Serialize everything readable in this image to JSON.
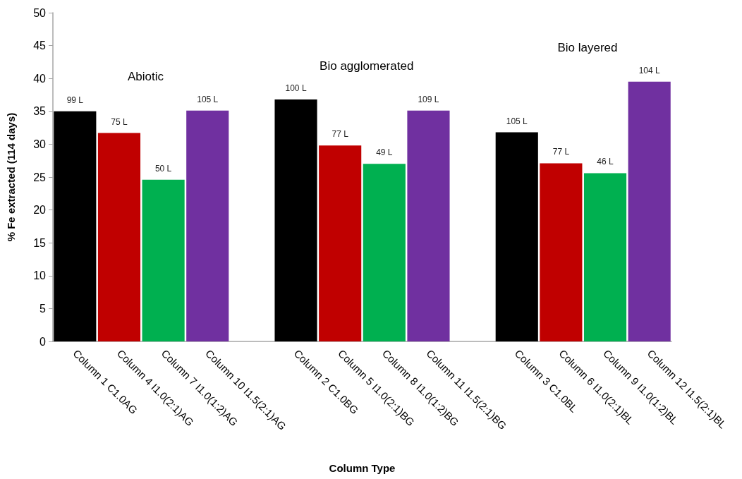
{
  "chart_data": {
    "type": "bar",
    "categories": [
      "Column 1 C1.0AG",
      "Column 4 I1.0(2:1)AG",
      "Column 7 I1.0(1:2)AG",
      "Column 10 I1.5(2:1)AG",
      null,
      "Column 2 C1.0BG",
      "Column 5 I1.0(2:1)BG",
      "Column 8 I1.0(1:2)BG",
      "Column 11 I1.5(2:1)BG",
      null,
      "Column 3 C1.0BL",
      "Column 6 I1.0(2:1)BL",
      "Column 9 I1.0(1:2)BL",
      "Column 12 I1.5(2:1)BL"
    ],
    "values": [
      35.0,
      31.7,
      24.6,
      35.1,
      null,
      36.8,
      29.8,
      27.0,
      35.1,
      null,
      31.8,
      27.1,
      25.6,
      39.5
    ],
    "colors": [
      "#000000",
      "#c00000",
      "#00b050",
      "#7030a0",
      null,
      "#000000",
      "#c00000",
      "#00b050",
      "#7030a0",
      null,
      "#000000",
      "#c00000",
      "#00b050",
      "#7030a0"
    ],
    "xlabel": "Column Type",
    "ylabel": "% Fe extracted (114 days)",
    "ylim": [
      0,
      50
    ],
    "yticks": [
      0,
      5,
      10,
      15,
      20,
      25,
      30,
      35,
      40,
      45,
      50
    ],
    "annotations": [
      "Abiotic",
      "Bio agglomerated",
      "Bio layered",
      {
        "text": "99 L",
        "x": "Column 1 C1.0AG",
        "y": 35.0
      },
      {
        "text": "75 L",
        "x": "Column 4 I1.0(2:1)AG",
        "y": 31.7
      },
      {
        "text": "50 L",
        "x": "Column 7 I1.0(1:2)AG",
        "y": 24.6
      },
      {
        "text": "105 L",
        "x": "Column 10 I1.5(2:1)AG",
        "y": 35.1
      },
      {
        "text": "100 L",
        "x": "Column 2 C1.0BG",
        "y": 36.8
      },
      {
        "text": "77 L",
        "x": "Column 5 I1.0(2:1)BG",
        "y": 29.8
      },
      {
        "text": "49 L",
        "x": "Column 8 I1.0(1:2)BG",
        "y": 27.0
      },
      {
        "text": "109 L",
        "x": "Column 11 I1.5(2:1)BG",
        "y": 35.1
      },
      {
        "text": "105 L",
        "x": "Column 3 C1.0BL",
        "y": 31.8
      },
      {
        "text": "77 L",
        "x": "Column 6 I1.0(2:1)BL",
        "y": 27.1
      },
      {
        "text": "46 L",
        "x": "Column 9 I1.0(1:2)BL",
        "y": 25.6
      },
      {
        "text": "104 L",
        "x": "Column 12 I1.5(2:1)BL",
        "y": 39.5
      }
    ],
    "grid": false
  }
}
